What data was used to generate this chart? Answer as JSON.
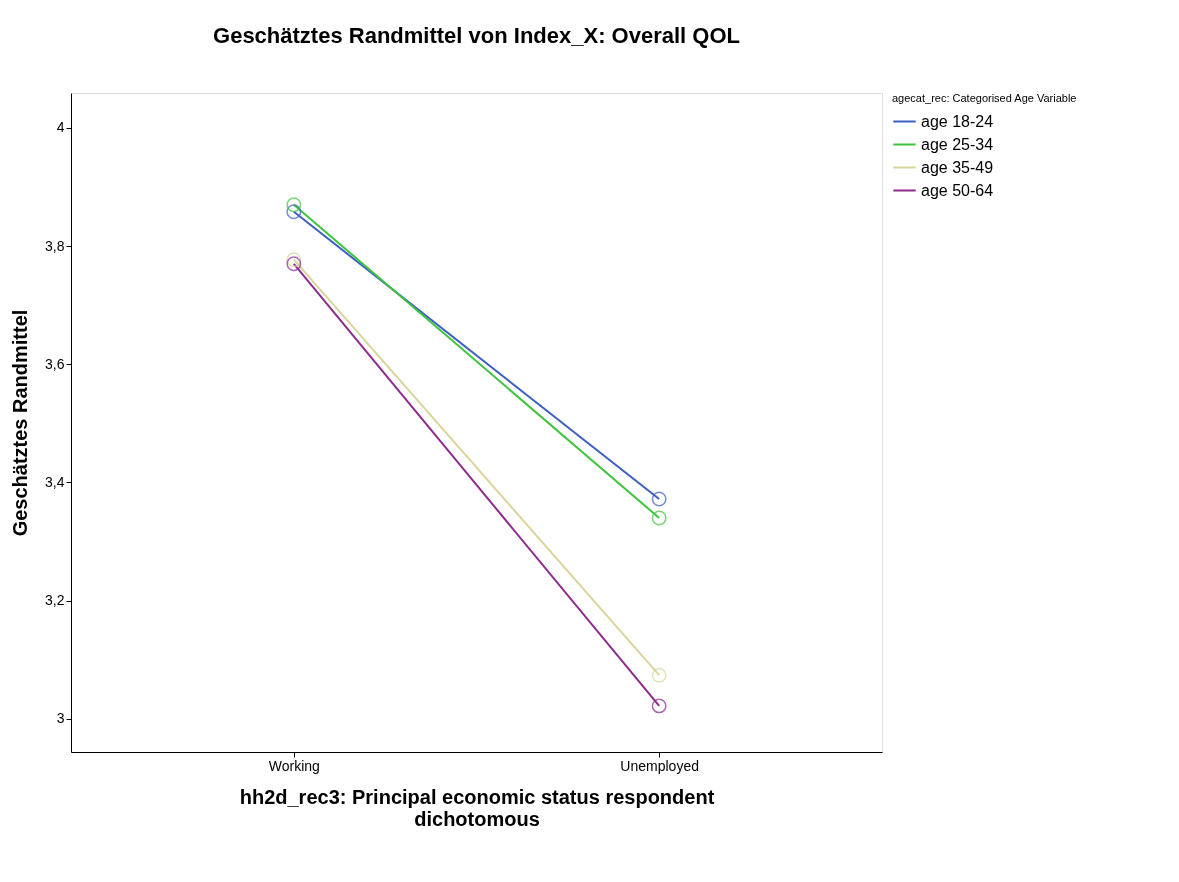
{
  "chart_data": {
    "type": "line",
    "title": "Geschätztes Randmittel von Index_X: Overall QOL",
    "xlabel": "hh2d_rec3: Principal economic status respondent dichotomous",
    "ylabel": "Geschätztes Randmittel",
    "legend_title": "agecat_rec: Categorised Age Variable",
    "categories": [
      "Working",
      "Unemployed"
    ],
    "series": [
      {
        "name": "age 18-24",
        "color": "#3d5fc4",
        "values": [
          3.858,
          3.372
        ]
      },
      {
        "name": "age 25-34",
        "color": "#3dc43d",
        "values": [
          3.87,
          3.34
        ]
      },
      {
        "name": "age 35-49",
        "color": "#d9d59a",
        "values": [
          3.777,
          3.074
        ]
      },
      {
        "name": "age 50-64",
        "color": "#8e2a8e",
        "values": [
          3.77,
          3.022
        ]
      }
    ],
    "ylim": [
      2.944,
      4.059
    ],
    "yticks": [
      3,
      {
        "value": 3.2,
        "label": "3,2"
      },
      {
        "value": 3.4,
        "label": "3,4"
      },
      {
        "value": 3.6,
        "label": "3,6"
      },
      {
        "value": 3.8,
        "label": "3,8"
      },
      4
    ],
    "grid": false,
    "legend": "top right",
    "marker": "circle",
    "line_style": "solid"
  }
}
